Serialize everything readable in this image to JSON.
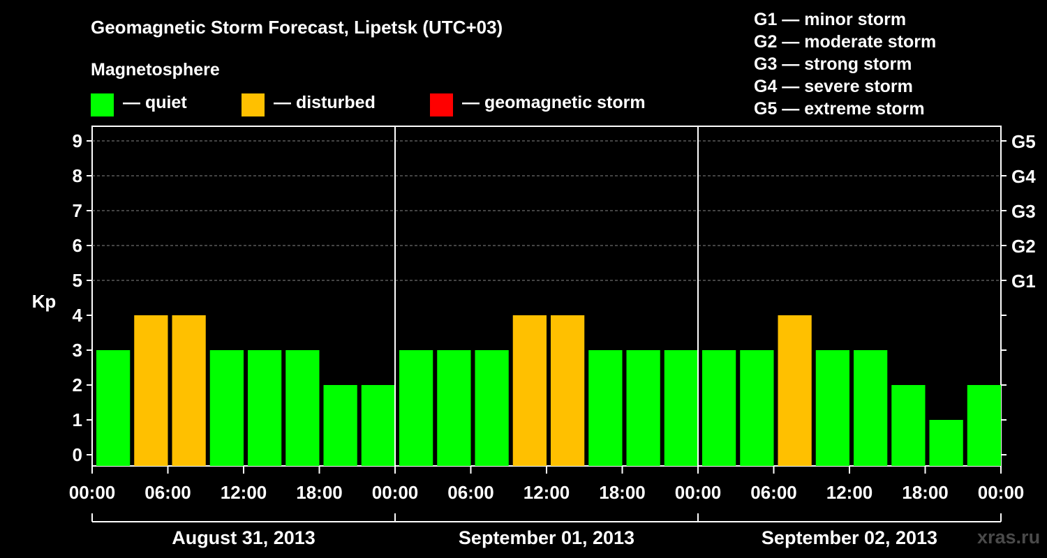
{
  "title": "Geomagnetic Storm Forecast, Lipetsk (UTC+03)",
  "magnetosphere_label": "Magnetosphere",
  "status_legend": [
    {
      "label": "— quiet",
      "color": "#00ff00"
    },
    {
      "label": "— disturbed",
      "color": "#ffc000"
    },
    {
      "label": "— geomagnetic storm",
      "color": "#ff0000"
    }
  ],
  "g_scale": [
    "G1 — minor storm",
    "G2 — moderate storm",
    "G3 — strong storm",
    "G4 — severe storm",
    "G5 — extreme storm"
  ],
  "watermark": "xras.ru",
  "chart_data": {
    "type": "bar",
    "ylabel": "Kp",
    "ylim": [
      0,
      9
    ],
    "y_ticks": [
      "0",
      "1",
      "2",
      "3",
      "4",
      "5",
      "6",
      "7",
      "8",
      "9"
    ],
    "right_ticks": [
      {
        "kp": 5,
        "label": "G1"
      },
      {
        "kp": 6,
        "label": "G2"
      },
      {
        "kp": 7,
        "label": "G3"
      },
      {
        "kp": 8,
        "label": "G4"
      },
      {
        "kp": 9,
        "label": "G5"
      }
    ],
    "x_tick_labels": [
      "00:00",
      "06:00",
      "12:00",
      "18:00",
      "00:00",
      "06:00",
      "12:00",
      "18:00",
      "00:00",
      "06:00",
      "12:00",
      "18:00",
      "00:00"
    ],
    "days": [
      "August 31, 2013",
      "September 01, 2013",
      "September 02, 2013"
    ],
    "intervals_per_day": 8,
    "grid": "dashed horizontal at Kp 5-9",
    "values": [
      3,
      4,
      4,
      3,
      3,
      3,
      2,
      2,
      3,
      3,
      3,
      4,
      4,
      3,
      3,
      3,
      3,
      3,
      4,
      3,
      3,
      2,
      1,
      2
    ],
    "status": [
      "quiet",
      "disturbed",
      "disturbed",
      "quiet",
      "quiet",
      "quiet",
      "quiet",
      "quiet",
      "quiet",
      "quiet",
      "quiet",
      "disturbed",
      "disturbed",
      "quiet",
      "quiet",
      "quiet",
      "quiet",
      "quiet",
      "disturbed",
      "quiet",
      "quiet",
      "quiet",
      "quiet",
      "quiet"
    ],
    "colors": {
      "quiet": "#00ff00",
      "disturbed": "#ffc000",
      "storm": "#ff0000"
    }
  }
}
